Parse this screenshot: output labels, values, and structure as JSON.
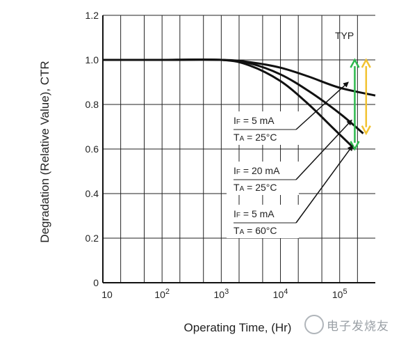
{
  "chart_data": {
    "type": "line",
    "xlabel": "Operating Time, (Hr)",
    "ylabel": "Degradation (Relative Value), CTR",
    "xscale": "log",
    "xlim": [
      10,
      400000
    ],
    "ylim": [
      0,
      1.2
    ],
    "x_ticks": [
      {
        "value": 10,
        "base": "10",
        "exp": ""
      },
      {
        "value": 100,
        "base": "10",
        "exp": "2"
      },
      {
        "value": 1000,
        "base": "10",
        "exp": "3"
      },
      {
        "value": 10000,
        "base": "10",
        "exp": "4"
      },
      {
        "value": 100000,
        "base": "10",
        "exp": "5"
      }
    ],
    "y_ticks": [
      "0",
      "0.2",
      "0.4",
      "0.6",
      "0.8",
      "1.0",
      "1.2"
    ],
    "grid": true,
    "annotation_typ": "TYP",
    "series": [
      {
        "x": [
          10,
          100,
          1000,
          3000,
          10000,
          30000,
          100000,
          400000
        ],
        "y": [
          1.0,
          1.0,
          1.0,
          0.99,
          0.965,
          0.925,
          0.875,
          0.84
        ],
        "label_lines": [
          {
            "main": "I",
            "sub": "F",
            "rest": " =  5 mA"
          },
          {
            "main": "T",
            "sub": "A",
            "rest": " = 25°C"
          }
        ]
      },
      {
        "x": [
          10,
          100,
          1000,
          3000,
          10000,
          30000,
          100000,
          250000
        ],
        "y": [
          1.0,
          1.0,
          1.0,
          0.985,
          0.935,
          0.86,
          0.76,
          0.67
        ],
        "label_lines": [
          {
            "main": "I",
            "sub": "F",
            "rest": " =  20 mA"
          },
          {
            "main": "T",
            "sub": "A",
            "rest": " = 25°C"
          }
        ]
      },
      {
        "x": [
          10,
          100,
          1000,
          3000,
          10000,
          30000,
          80000,
          180000
        ],
        "y": [
          1.0,
          1.0,
          1.0,
          0.975,
          0.905,
          0.8,
          0.69,
          0.6
        ],
        "label_lines": [
          {
            "main": "I",
            "sub": "F",
            "rest": " =  5 mA"
          },
          {
            "main": "T",
            "sub": "A",
            "rest": " = 60°C"
          }
        ]
      }
    ],
    "range_arrows": [
      {
        "x": 180000,
        "y_from": 0.6,
        "y_to": 1.0,
        "color": "#2db84d"
      },
      {
        "x": 280000,
        "y_from": 0.67,
        "y_to": 1.0,
        "color": "#f2c230"
      }
    ]
  },
  "watermark": {
    "text": "电子发烧友",
    "icon": "flame-logo"
  }
}
